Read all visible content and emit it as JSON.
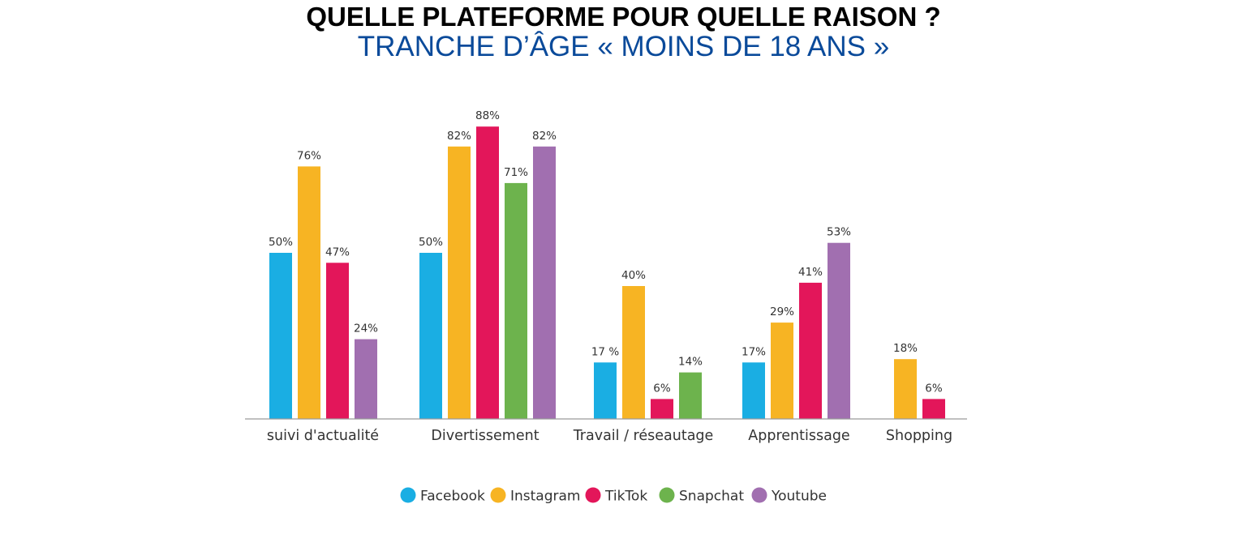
{
  "header": {
    "title": "QUELLE PLATEFORME POUR QUELLE RAISON ?",
    "subtitle": "TRANCHE D’ÂGE « MOINS DE 18 ANS »"
  },
  "chart_data": {
    "type": "bar",
    "title": "QUELLE PLATEFORME POUR QUELLE RAISON ?",
    "subtitle": "TRANCHE D’ÂGE « MOINS DE 18 ANS »",
    "xlabel": "",
    "ylabel": "",
    "ylim": [
      0,
      100
    ],
    "grid": false,
    "legend_position": "bottom-center",
    "categories": [
      "suivi d'actualité",
      "Divertissement",
      "Travail / réseautage",
      "Apprentissage",
      "Shopping"
    ],
    "series": [
      {
        "name": "Facebook",
        "color": "#1aaee3",
        "values": [
          50,
          50,
          17,
          17,
          null
        ],
        "labels": [
          "50%",
          "50%",
          "17 %",
          "17%",
          ""
        ]
      },
      {
        "name": "Instagram",
        "color": "#f7b423",
        "values": [
          76,
          82,
          40,
          29,
          18
        ],
        "labels": [
          "76%",
          "82%",
          "40%",
          "29%",
          "18%"
        ]
      },
      {
        "name": "TikTok",
        "color": "#e3165a",
        "values": [
          47,
          88,
          6,
          41,
          6
        ],
        "labels": [
          "47%",
          "88%",
          "6%",
          "41%",
          "6%"
        ]
      },
      {
        "name": "Snapchat",
        "color": "#6db34d",
        "values": [
          null,
          71,
          14,
          null,
          null
        ],
        "labels": [
          "",
          "71%",
          "14%",
          "",
          ""
        ]
      },
      {
        "name": "Youtube",
        "color": "#a16fb0",
        "values": [
          24,
          82,
          null,
          53,
          null
        ],
        "labels": [
          "24%",
          "82%",
          "",
          "53%",
          ""
        ]
      }
    ]
  }
}
